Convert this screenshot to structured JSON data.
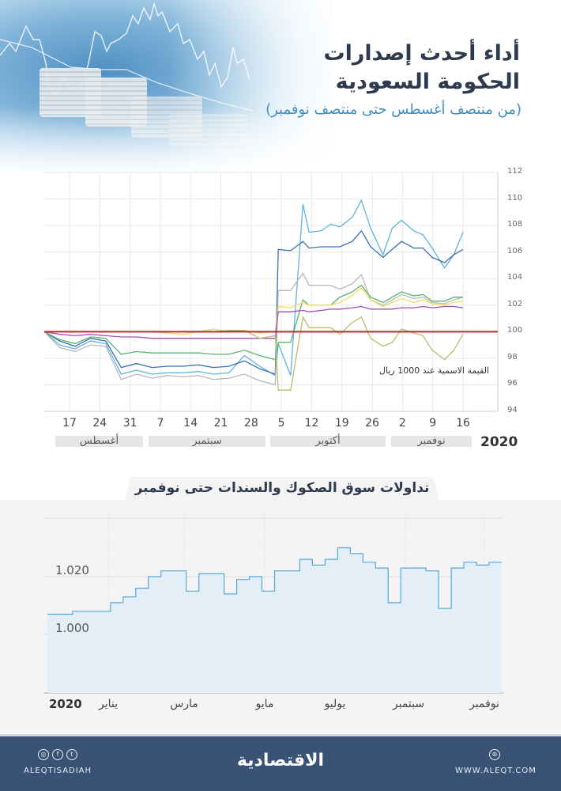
{
  "header": {
    "title_line1": "أداء أحدث إصدارات",
    "title_line2": "الحكومة السعودية",
    "subtitle": "(من منتصف أغسطس حتى منتصف نوفمبر)"
  },
  "section2": {
    "title": "تداولات سوق الصكوك والسندات حتى نوفمبر"
  },
  "footer": {
    "social_icons": [
      "instagram-icon",
      "facebook-icon",
      "twitter-icon"
    ],
    "handle": "ALEQTISADIAH",
    "logo": "الاقتصادية",
    "web_icon": "globe-icon",
    "website": "WWW.ALEQT.COM"
  },
  "colors": {
    "title": "#2d3a4f",
    "subtitle": "#3d8fc4",
    "par_line": "#cc1f2a",
    "footer_bg": "#3a5273",
    "area_fill": "#e3eef6",
    "area_line": "#5aa7d6"
  },
  "chart_data": [
    {
      "type": "line",
      "title": "أداء أحدث إصدارات الحكومة السعودية",
      "subtitle": "(من منتصف أغسطس حتى منتصف نوفمبر)",
      "xlabel": "",
      "ylabel": "",
      "ylim": [
        94,
        112
      ],
      "yticks": [
        "94",
        "96",
        "98",
        "100",
        "102",
        "104",
        "106",
        "108",
        "110",
        "112"
      ],
      "y_axis_position": "right",
      "grid": true,
      "x_tick_labels": [
        "17",
        "24",
        "31",
        "7",
        "14",
        "21",
        "28",
        "5",
        "12",
        "19",
        "26",
        "2",
        "9",
        "16"
      ],
      "month_bands": [
        {
          "label": "أغسطس",
          "from": 0,
          "to": 3
        },
        {
          "label": "سبتمبر",
          "from": 3,
          "to": 7
        },
        {
          "label": "أكتوبر",
          "from": 7,
          "to": 11
        },
        {
          "label": "نوفمبر",
          "from": 11,
          "to": 14
        }
      ],
      "year_label": "2020",
      "annotation": "القيمة الاسمية عند 1000 ريال",
      "reference_line": {
        "value": 100,
        "color": "#cc1f2a"
      },
      "x": [
        0,
        0.5,
        1,
        1.5,
        2,
        2.5,
        3,
        3.5,
        4,
        4.5,
        5,
        5.5,
        6,
        6.5,
        7,
        7.5,
        7.6,
        8,
        8.4,
        8.6,
        9,
        9.3,
        9.6,
        10,
        10.3,
        10.6,
        11,
        11.3,
        11.6,
        12,
        12.3,
        12.6,
        13,
        13.3,
        13.6
      ],
      "series": [
        {
          "name": "issue-1-light-blue",
          "color": "#5eb3e0",
          "values": [
            100,
            99.0,
            98.7,
            99.3,
            99.1,
            96.8,
            97.1,
            96.8,
            96.9,
            96.9,
            97.0,
            96.8,
            96.9,
            98.2,
            97.4,
            96.7,
            99.1,
            96.7,
            109.6,
            107.5,
            107.6,
            108.1,
            107.9,
            108.6,
            109.9,
            107.8,
            105.8,
            107.8,
            108.4,
            107.6,
            107.3,
            106.3,
            104.8,
            105.8,
            107.5
          ]
        },
        {
          "name": "issue-2-dark-blue",
          "color": "#3a6fb0",
          "values": [
            100,
            99.3,
            98.9,
            99.5,
            99.3,
            97.3,
            97.6,
            97.3,
            97.4,
            97.4,
            97.5,
            97.3,
            97.4,
            97.8,
            97.2,
            96.8,
            106.2,
            106.1,
            106.8,
            106.3,
            106.4,
            106.4,
            106.4,
            106.8,
            107.6,
            106.4,
            105.6,
            106.2,
            106.8,
            106.3,
            106.3,
            105.6,
            105.2,
            105.8,
            106.2
          ]
        },
        {
          "name": "issue-3-gray",
          "color": "#b8b8b8",
          "values": [
            100,
            98.8,
            98.5,
            99.0,
            98.9,
            96.4,
            96.8,
            96.5,
            96.7,
            96.6,
            96.7,
            96.4,
            96.5,
            96.8,
            96.3,
            96.0,
            103.1,
            103.1,
            104.4,
            103.5,
            103.5,
            103.5,
            103.2,
            103.6,
            104.3,
            102.4,
            102.0,
            102.4,
            102.8,
            102.5,
            102.6,
            102.2,
            102.1,
            102.4,
            102.6
          ]
        },
        {
          "name": "issue-4-green",
          "color": "#5ab56b",
          "values": [
            100,
            99.4,
            99.1,
            99.6,
            99.5,
            98.3,
            98.5,
            98.4,
            98.4,
            98.4,
            98.4,
            98.3,
            98.3,
            98.6,
            98.2,
            97.9,
            99.2,
            99.2,
            102.4,
            102.0,
            102.0,
            102.0,
            102.6,
            103.0,
            103.5,
            102.6,
            102.2,
            102.6,
            103.0,
            102.7,
            102.8,
            102.3,
            102.3,
            102.6,
            102.6
          ]
        },
        {
          "name": "issue-5-yellow",
          "color": "#f2dc5d",
          "values": [
            100,
            100,
            100,
            100,
            100,
            100,
            100,
            100,
            99.9,
            99.8,
            100,
            100.2,
            100,
            100.1,
            99.9,
            100,
            101.9,
            101.8,
            102.2,
            102.0,
            102.0,
            102.0,
            102.2,
            102.7,
            103.3,
            102.4,
            101.9,
            102.2,
            102.5,
            102.2,
            102.4,
            102.1,
            102.0,
            102.2,
            102.3
          ]
        },
        {
          "name": "issue-6-purple",
          "color": "#a24fb5",
          "values": [
            100,
            99.8,
            99.7,
            99.8,
            99.7,
            99.6,
            99.6,
            99.5,
            99.5,
            99.5,
            99.5,
            99.5,
            99.5,
            99.5,
            99.5,
            99.5,
            101.5,
            101.5,
            101.6,
            101.5,
            101.6,
            101.7,
            101.7,
            101.8,
            101.9,
            101.7,
            101.7,
            101.7,
            101.8,
            101.8,
            101.9,
            101.8,
            101.9,
            101.9,
            101.8
          ]
        },
        {
          "name": "issue-7-olive",
          "color": "#b5c06a",
          "values": [
            100,
            100,
            100,
            100,
            100,
            100,
            100,
            100,
            100,
            100,
            100,
            100,
            100.1,
            100.1,
            99.5,
            99.7,
            95.6,
            95.6,
            101.1,
            100.3,
            100.3,
            100.3,
            99.8,
            100.7,
            101.1,
            99.5,
            98.9,
            99.2,
            100.2,
            99.9,
            99.7,
            98.6,
            97.9,
            98.6,
            99.8
          ]
        }
      ]
    },
    {
      "type": "area",
      "title": "تداولات سوق الصكوك والسندات حتى نوفمبر",
      "xlabel": "",
      "ylabel": "",
      "ylim": [
        0.98,
        1.03
      ],
      "yticks": [
        "1.000",
        "1.020"
      ],
      "grid": true,
      "x_tick_labels": [
        "2020",
        "يناير",
        "مارس",
        "مايو",
        "يوليو",
        "سبتمبر",
        "نوفمبر"
      ],
      "x": [
        "Dec-1",
        "Dec-15",
        "Jan-1",
        "Jan-15",
        "Feb-1",
        "Feb-15",
        "Mar-1",
        "Mar-15",
        "Apr-1",
        "Apr-10",
        "Apr-15",
        "Apr-25",
        "May-1",
        "May-10",
        "May-20",
        "Jun-1",
        "Jun-10",
        "Jun-15",
        "Jun-25",
        "Jul-1",
        "Jul-10",
        "Jul-15",
        "Jul-25",
        "Aug-1",
        "Aug-10",
        "Aug-20",
        "Sep-1",
        "Sep-5",
        "Sep-10",
        "Sep-20",
        "Oct-1",
        "Oct-5",
        "Oct-10",
        "Oct-20",
        "Nov-1",
        "Nov-10",
        "Nov-20"
      ],
      "series": [
        {
          "name": "صكوك وسندات",
          "color": "#5aa7d6",
          "values": [
            1.007,
            1.007,
            1.008,
            1.008,
            1.008,
            1.011,
            1.013,
            1.016,
            1.02,
            1.022,
            1.022,
            1.015,
            1.021,
            1.021,
            1.014,
            1.019,
            1.02,
            1.015,
            1.022,
            1.022,
            1.026,
            1.024,
            1.026,
            1.03,
            1.028,
            1.025,
            1.023,
            1.011,
            1.023,
            1.023,
            1.022,
            1.009,
            1.023,
            1.025,
            1.024,
            1.025,
            1.025
          ]
        }
      ]
    }
  ]
}
